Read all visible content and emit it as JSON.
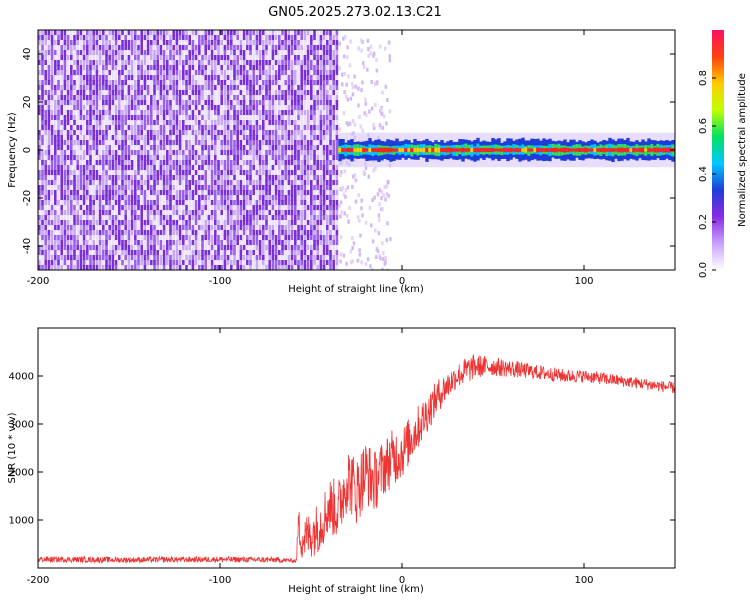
{
  "title": "GN05.2025.273.02.13.C21",
  "colors": {
    "noise": "#7a2fd6",
    "noise_light": "#c9a8f2",
    "snr_line": "#ee3333",
    "band_core": "#ff2020",
    "band_mid": "#30e060",
    "band_edge": "#1e3cd8"
  },
  "chart_data": [
    {
      "type": "heatmap",
      "xlabel": "Height of straight line (km)",
      "ylabel": "Frequency (Hz)",
      "xlim": [
        -200,
        150
      ],
      "ylim": [
        -50,
        50
      ],
      "x_ticks": [
        -200,
        -100,
        0,
        100
      ],
      "y_ticks": [
        -40,
        -20,
        0,
        20,
        40
      ],
      "noise_region_x": [
        -200,
        -35
      ],
      "signal_band": {
        "x": [
          -35,
          150
        ],
        "center_frequency": 0,
        "half_width": 3
      },
      "grid": false,
      "colorbar": {
        "label": "Normalized spectral amplitude",
        "range": [
          0.0,
          1.0
        ],
        "ticks": [
          0.0,
          0.2,
          0.4,
          0.6,
          0.8
        ],
        "tick_labels": [
          "0.0",
          "0.2",
          "0.4",
          "0.6",
          "0.8"
        ],
        "colormap": [
          "#ffffff",
          "#c8a0ff",
          "#8a2be2",
          "#1e3cd8",
          "#00c8ff",
          "#00e060",
          "#c0ff00",
          "#ffcc00",
          "#ff4010",
          "#ff1060"
        ]
      }
    },
    {
      "type": "line",
      "xlabel": "Height of straight line (km)",
      "ylabel": "SNR (10 * v/v)",
      "xlim": [
        -200,
        150
      ],
      "ylim": [
        0,
        5000
      ],
      "x_ticks": [
        -200,
        -100,
        0,
        100
      ],
      "y_ticks": [
        1000,
        2000,
        3000,
        4000
      ],
      "grid": false,
      "series": [
        {
          "x": [
            -200,
            -150,
            -100,
            -70,
            -58,
            -57,
            -55,
            -50,
            -45,
            -40,
            -35,
            -30,
            -25,
            -20,
            -15,
            -10,
            -5,
            0,
            5,
            10,
            15,
            20,
            25,
            30,
            35,
            40,
            50,
            60,
            70,
            80,
            90,
            100,
            110,
            120,
            130,
            140,
            150
          ],
          "values": [
            180,
            170,
            180,
            170,
            150,
            900,
            600,
            700,
            900,
            1300,
            1200,
            1900,
            1600,
            2000,
            1800,
            2100,
            2300,
            2400,
            2700,
            3000,
            3300,
            3600,
            3800,
            4000,
            4100,
            4200,
            4200,
            4150,
            4100,
            4050,
            4000,
            4000,
            3950,
            3900,
            3850,
            3800,
            3750
          ],
          "noise_amplitude": [
            60,
            60,
            60,
            60,
            40,
            400,
            450,
            500,
            550,
            600,
            650,
            700,
            700,
            700,
            650,
            600,
            600,
            550,
            500,
            450,
            400,
            350,
            300,
            250,
            300,
            250,
            200,
            180,
            160,
            150,
            140,
            130,
            130,
            120,
            120,
            120,
            120
          ]
        }
      ]
    }
  ]
}
